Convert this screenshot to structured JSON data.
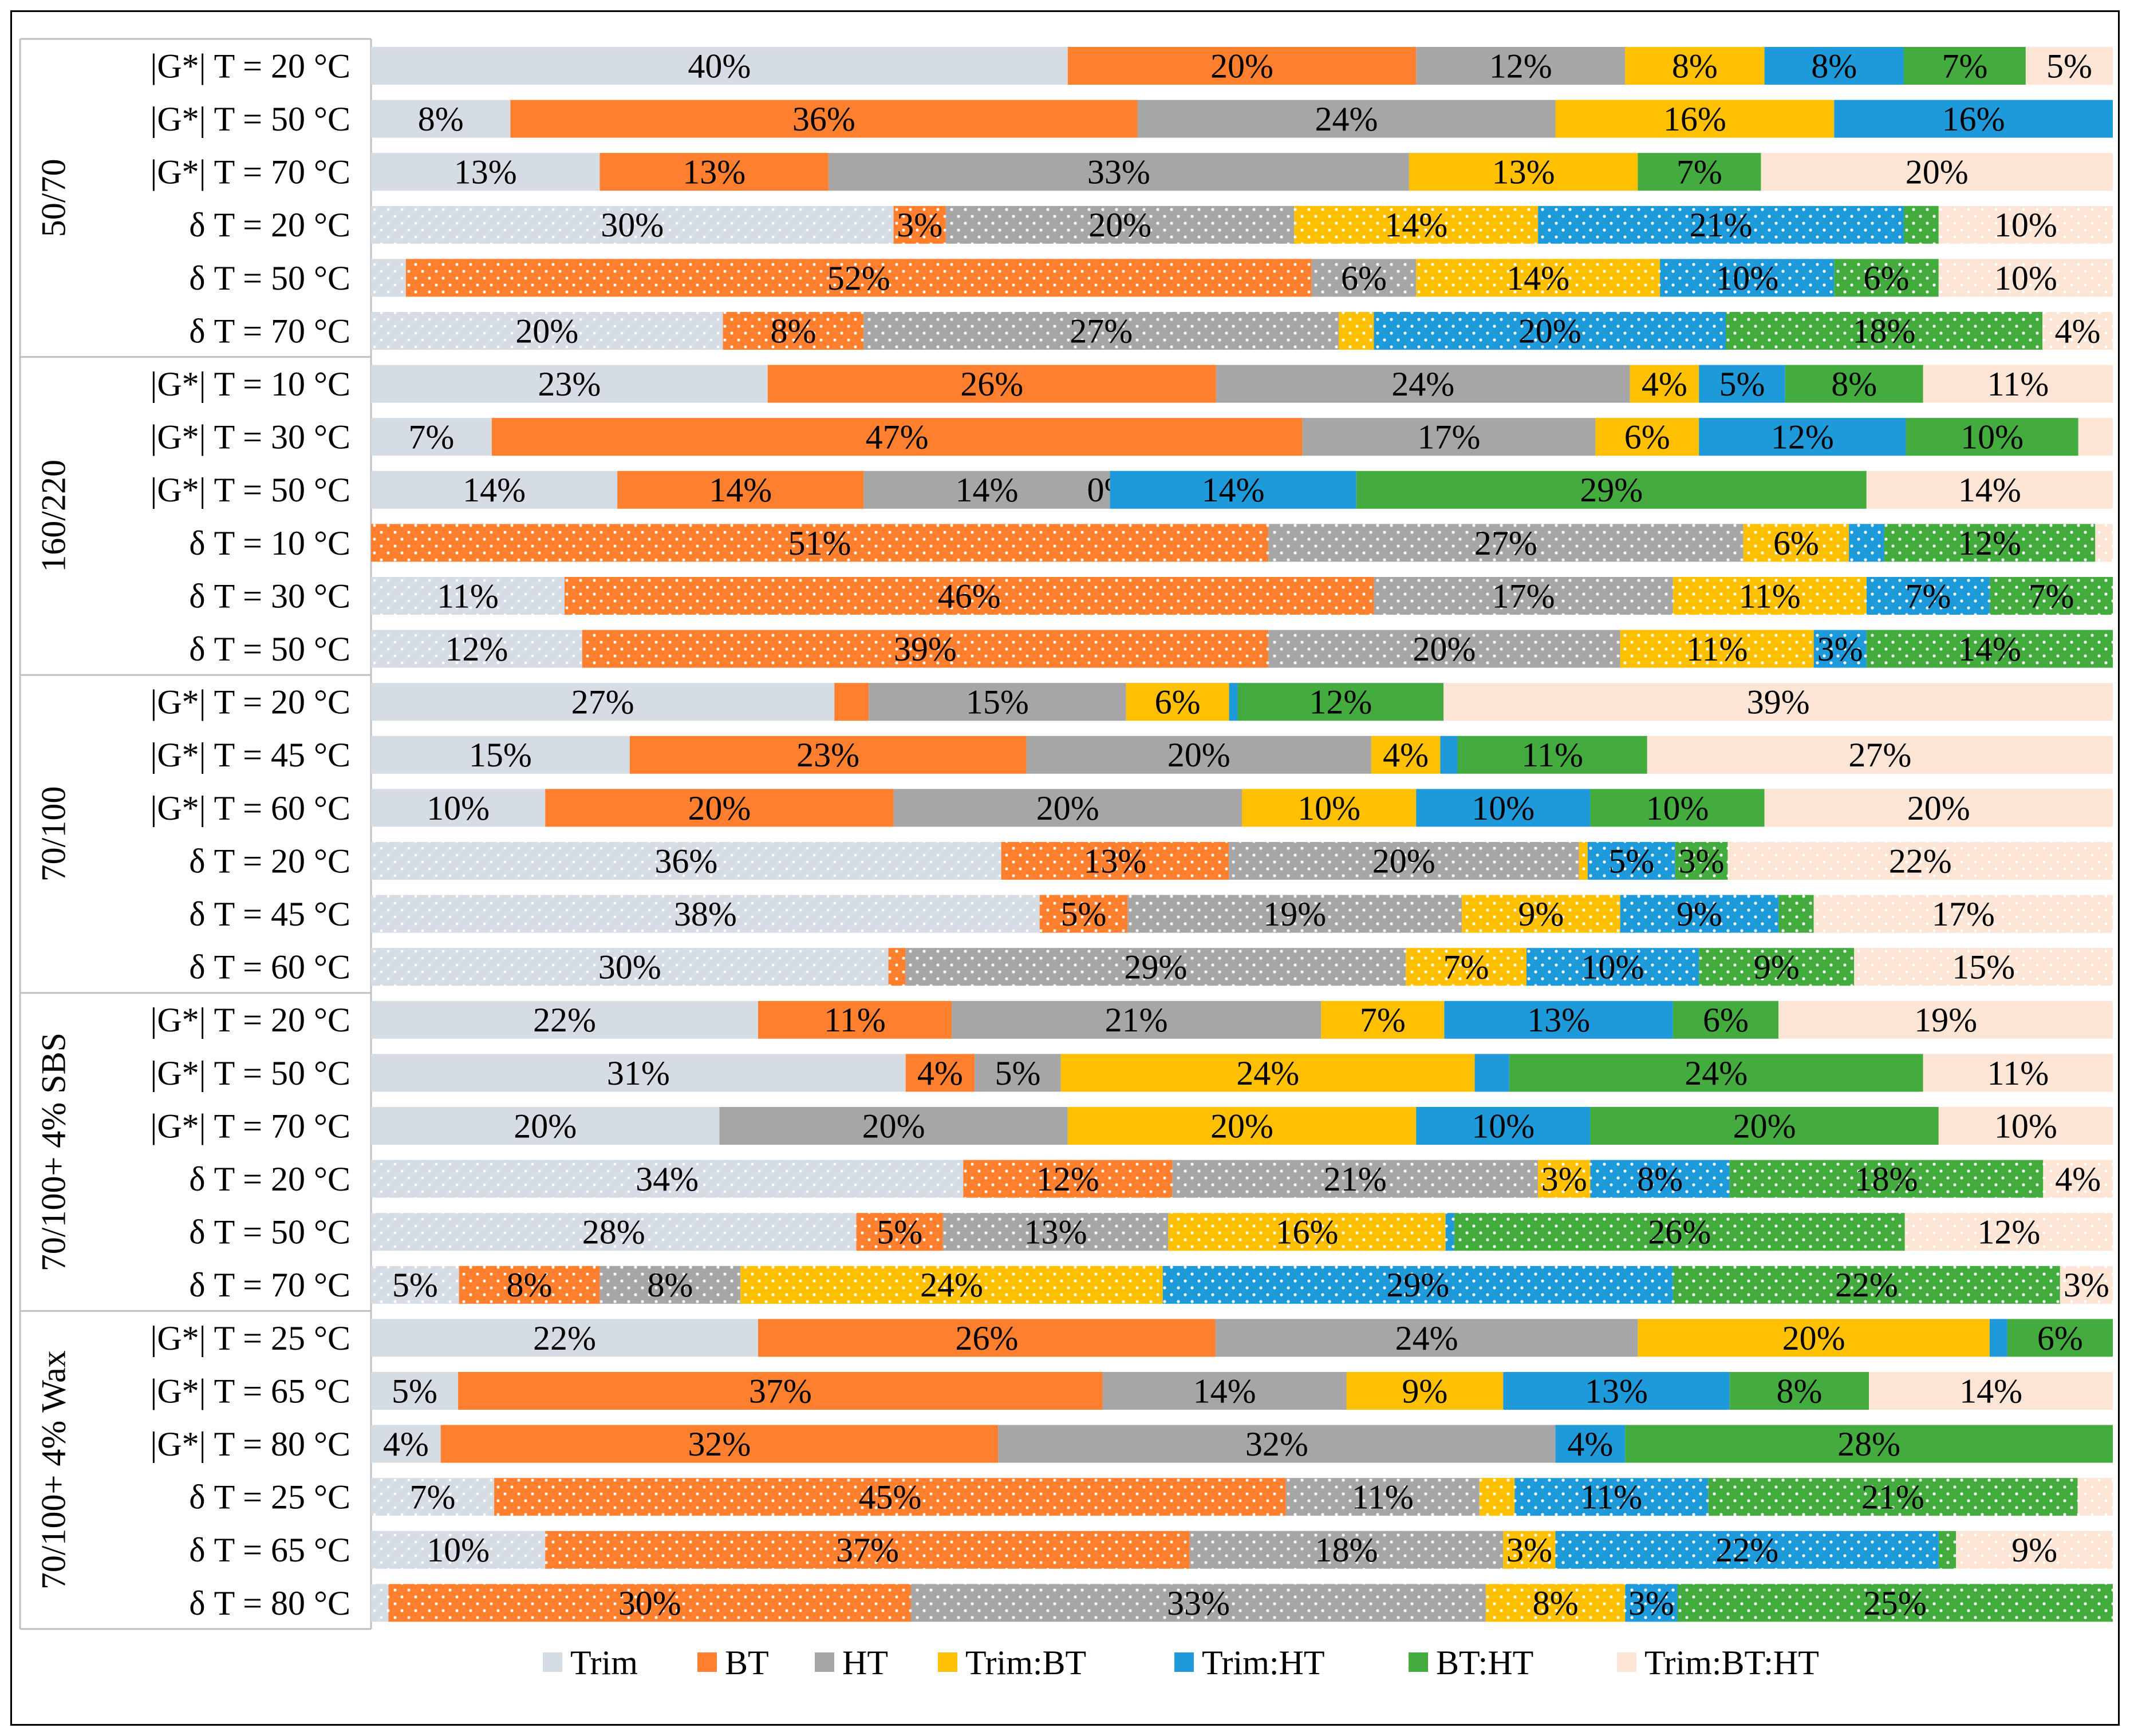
{
  "chart_data": {
    "type": "bar",
    "orientation": "horizontal-stacked-100",
    "title": "",
    "xlabel": "",
    "ylabel": "",
    "legend_position": "bottom",
    "series": [
      {
        "name": "Trim",
        "color": "#d6dce4"
      },
      {
        "name": "BT",
        "color": "#fe7f2d"
      },
      {
        "name": "HT",
        "color": "#a6a6a6"
      },
      {
        "name": "Trim:BT",
        "color": "#fec000"
      },
      {
        "name": "Trim:HT",
        "color": "#1e9ada"
      },
      {
        "name": "BT:HT",
        "color": "#44ab3f"
      },
      {
        "name": "Trim:BT:HT",
        "color": "#fde5d5"
      }
    ],
    "groups": [
      {
        "name": "50/70",
        "rows": [
          {
            "label": "|G*| T = 20 °C",
            "dotted": false,
            "values": [
              40,
              20,
              12,
              8,
              8,
              7,
              5
            ]
          },
          {
            "label": "|G*| T = 50 °C",
            "dotted": false,
            "values": [
              8,
              36,
              24,
              16,
              16,
              0,
              0
            ]
          },
          {
            "label": "|G*| T = 70 °C",
            "dotted": false,
            "values": [
              13,
              13,
              33,
              13,
              0,
              7,
              20
            ]
          },
          {
            "label": "δ T = 20 °C",
            "dotted": true,
            "values": [
              30,
              3,
              20,
              14,
              21,
              2,
              10
            ]
          },
          {
            "label": "δ T = 50 °C",
            "dotted": true,
            "values": [
              2,
              52,
              6,
              14,
              10,
              6,
              10
            ]
          },
          {
            "label": "δ T = 70 °C",
            "dotted": true,
            "values": [
              20,
              8,
              27,
              2,
              20,
              18,
              4
            ]
          }
        ]
      },
      {
        "name": "160/220",
        "rows": [
          {
            "label": "|G*| T = 10 °C",
            "dotted": false,
            "values": [
              23,
              26,
              24,
              4,
              5,
              8,
              11
            ]
          },
          {
            "label": "|G*| T = 30 °C",
            "dotted": false,
            "values": [
              7,
              47,
              17,
              6,
              12,
              10,
              2
            ]
          },
          {
            "label": "|G*| T = 50 °C",
            "dotted": false,
            "values": [
              14,
              14,
              14,
              0,
              14,
              29,
              14
            ]
          },
          {
            "label": "δ T = 10 °C",
            "dotted": true,
            "values": [
              0,
              51,
              27,
              6,
              2,
              12,
              1
            ]
          },
          {
            "label": "δ T = 30 °C",
            "dotted": true,
            "values": [
              11,
              46,
              17,
              11,
              7,
              7,
              0
            ]
          },
          {
            "label": "δ T = 50 °C",
            "dotted": true,
            "values": [
              12,
              39,
              20,
              11,
              3,
              14,
              0
            ]
          }
        ]
      },
      {
        "name": "70/100",
        "rows": [
          {
            "label": "|G*| T = 20 °C",
            "dotted": false,
            "values": [
              27,
              2,
              15,
              6,
              0.5,
              12,
              39
            ]
          },
          {
            "label": "|G*| T = 45 °C",
            "dotted": false,
            "values": [
              15,
              23,
              20,
              4,
              1,
              11,
              27
            ]
          },
          {
            "label": "|G*| T = 60 °C",
            "dotted": false,
            "values": [
              10,
              20,
              20,
              10,
              10,
              10,
              20
            ]
          },
          {
            "label": "δ T = 20 °C",
            "dotted": true,
            "values": [
              36,
              13,
              20,
              0.5,
              5,
              3,
              22
            ]
          },
          {
            "label": "δ T = 45 °C",
            "dotted": true,
            "values": [
              38,
              5,
              19,
              9,
              9,
              2,
              17
            ]
          },
          {
            "label": "δ T = 60 °C",
            "dotted": true,
            "values": [
              30,
              1,
              29,
              7,
              10,
              9,
              15
            ]
          }
        ]
      },
      {
        "name": "70/100+ 4% SBS",
        "rows": [
          {
            "label": "|G*| T = 20 °C",
            "dotted": false,
            "values": [
              22,
              11,
              21,
              7,
              13,
              6,
              19
            ]
          },
          {
            "label": "|G*| T = 50 °C",
            "dotted": false,
            "values": [
              31,
              4,
              5,
              24,
              2,
              24,
              11
            ]
          },
          {
            "label": "|G*| T = 70 °C",
            "dotted": false,
            "values": [
              20,
              0,
              20,
              20,
              10,
              20,
              10
            ]
          },
          {
            "label": "δ T = 20 °C",
            "dotted": true,
            "values": [
              34,
              12,
              21,
              3,
              8,
              18,
              4
            ]
          },
          {
            "label": "δ T = 50 °C",
            "dotted": true,
            "values": [
              28,
              5,
              13,
              16,
              0.5,
              26,
              12
            ]
          },
          {
            "label": "δ T = 70 °C",
            "dotted": true,
            "values": [
              5,
              8,
              8,
              24,
              29,
              22,
              3
            ]
          }
        ]
      },
      {
        "name": "70/100+ 4% Wax",
        "rows": [
          {
            "label": "|G*| T = 25 °C",
            "dotted": false,
            "values": [
              22,
              26,
              24,
              20,
              1,
              6,
              0
            ]
          },
          {
            "label": "|G*| T = 65 °C",
            "dotted": false,
            "values": [
              5,
              37,
              14,
              9,
              13,
              8,
              14
            ]
          },
          {
            "label": "|G*| T = 80 °C",
            "dotted": false,
            "values": [
              4,
              32,
              32,
              0,
              4,
              28,
              0
            ]
          },
          {
            "label": "δ T = 25 °C",
            "dotted": true,
            "values": [
              7,
              45,
              11,
              2,
              11,
              21,
              2
            ]
          },
          {
            "label": "δ T = 65 °C",
            "dotted": true,
            "values": [
              10,
              37,
              18,
              3,
              22,
              1,
              9
            ]
          },
          {
            "label": "δ T = 80 °C",
            "dotted": true,
            "values": [
              1,
              30,
              33,
              8,
              3,
              25,
              0
            ]
          }
        ]
      }
    ],
    "data_labels": [
      [
        "40%",
        "20%",
        "12%",
        "8%",
        "8%",
        "7%",
        "5%"
      ],
      [
        "8%",
        "36%",
        "24%",
        "16%",
        "16%",
        "",
        ""
      ],
      [
        "13%",
        "13%",
        "33%",
        "13%",
        "",
        "7%",
        "20%"
      ],
      [
        "30%",
        "3%",
        "20%",
        "14%",
        "21%",
        "",
        "10%"
      ],
      [
        "",
        "52%",
        "6%",
        "14%",
        "10%",
        "6%",
        "10%"
      ],
      [
        "20%",
        "8%",
        "27%",
        "",
        "20%",
        "18%",
        "4%"
      ],
      [
        "23%",
        "26%",
        "24%",
        "4%",
        "5%",
        "8%",
        "11%"
      ],
      [
        "7%",
        "47%",
        "17%",
        "6%",
        "12%",
        "10%",
        ""
      ],
      [
        "14%",
        "14%",
        "14%",
        "0%",
        "14%",
        "29%",
        "14%"
      ],
      [
        "",
        "51%",
        "27%",
        "6%",
        "",
        "12%",
        ""
      ],
      [
        "11%",
        "46%",
        "17%",
        "11%",
        "7%",
        "7%",
        ""
      ],
      [
        "12%",
        "39%",
        "20%",
        "11%",
        "3%",
        "14%",
        ""
      ],
      [
        "27%",
        "",
        "15%",
        "6%",
        "",
        "12%",
        "39%"
      ],
      [
        "15%",
        "23%",
        "20%",
        "4%",
        "",
        "11%",
        "27%"
      ],
      [
        "10%",
        "20%",
        "20%",
        "10%",
        "10%",
        "10%",
        "20%"
      ],
      [
        "36%",
        "13%",
        "20%",
        "",
        "5%",
        "3%",
        "22%"
      ],
      [
        "38%",
        "5%",
        "19%",
        "9%",
        "9%",
        "",
        "17%"
      ],
      [
        "30%",
        "",
        "29%",
        "7%",
        "10%",
        "9%",
        "15%"
      ],
      [
        "22%",
        "11%",
        "21%",
        "7%",
        "13%",
        "6%",
        "19%"
      ],
      [
        "31%",
        "4%",
        "5%",
        "24%",
        "",
        "24%",
        "11%"
      ],
      [
        "20%",
        "",
        "20%",
        "20%",
        "10%",
        "20%",
        "10%"
      ],
      [
        "34%",
        "12%",
        "21%",
        "3%",
        "8%",
        "18%",
        "4%"
      ],
      [
        "28%",
        "5%",
        "13%",
        "16%",
        "",
        "26%",
        "12%"
      ],
      [
        "5%",
        "8%",
        "8%",
        "24%",
        "29%",
        "22%",
        "3%"
      ],
      [
        "22%",
        "26%",
        "24%",
        "20%",
        "",
        "6%",
        ""
      ],
      [
        "5%",
        "37%",
        "14%",
        "9%",
        "13%",
        "8%",
        "14%"
      ],
      [
        "4%",
        "32%",
        "32%",
        "",
        "4%",
        "28%",
        ""
      ],
      [
        "7%",
        "45%",
        "11%",
        "",
        "11%",
        "21%",
        ""
      ],
      [
        "10%",
        "37%",
        "18%",
        "3%",
        "22%",
        "",
        "9%"
      ],
      [
        "",
        "30%",
        "33%",
        "8%",
        "3%",
        "25%",
        ""
      ]
    ]
  }
}
